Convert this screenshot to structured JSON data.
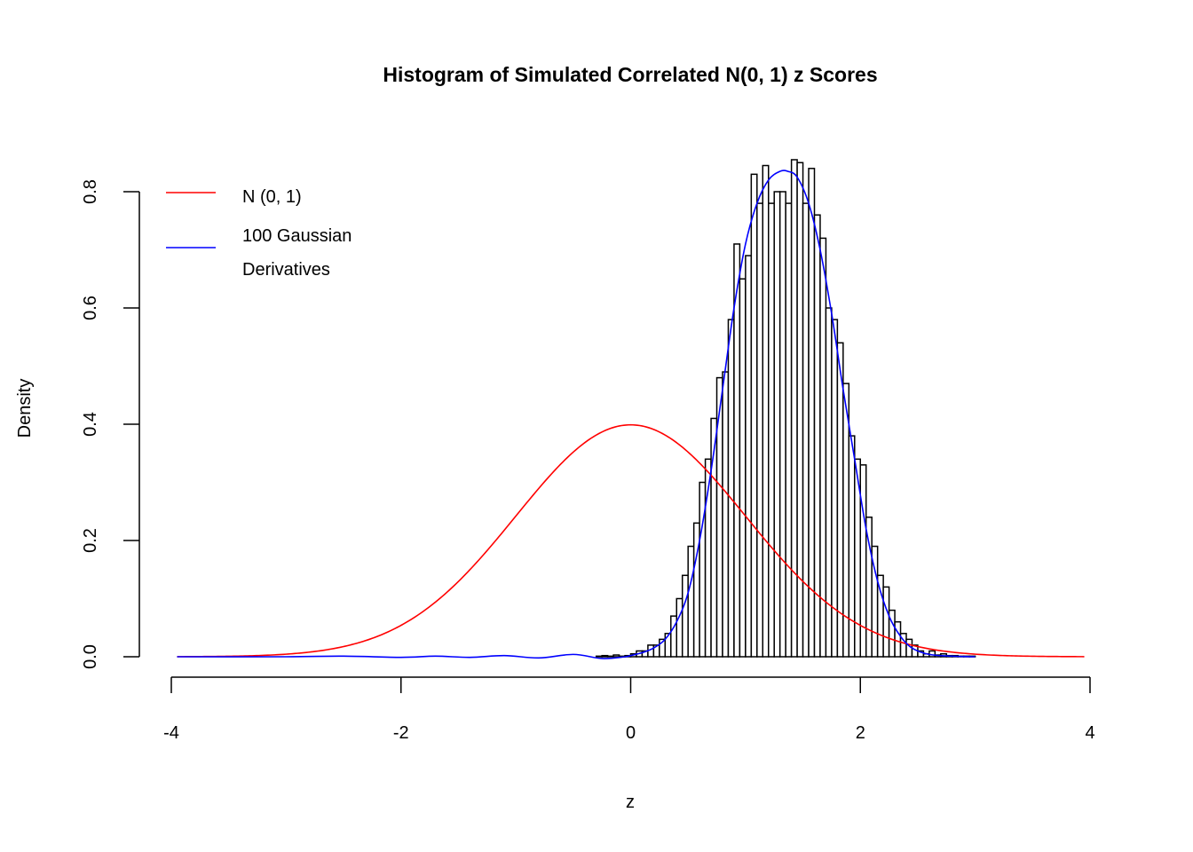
{
  "chart_data": {
    "type": "bar",
    "title": "Histogram of Simulated Correlated N(0, 1) z Scores",
    "xlabel": "z",
    "ylabel": "Density",
    "xlim": [
      -4,
      4
    ],
    "ylim": [
      0,
      0.8
    ],
    "xticks": [
      "-4",
      "-2",
      "0",
      "2",
      "4"
    ],
    "yticks": [
      "0.0",
      "0.2",
      "0.4",
      "0.6",
      "0.8"
    ],
    "grid": false,
    "legend_position": "top-left",
    "histogram": {
      "bin_width": 0.05,
      "bin_start": -0.3,
      "densities": [
        0.001,
        0.002,
        0.001,
        0.003,
        0.001,
        0.002,
        0.005,
        0.01,
        0.01,
        0.02,
        0.02,
        0.03,
        0.04,
        0.07,
        0.1,
        0.14,
        0.19,
        0.23,
        0.3,
        0.34,
        0.41,
        0.48,
        0.49,
        0.58,
        0.71,
        0.65,
        0.69,
        0.83,
        0.78,
        0.845,
        0.78,
        0.8,
        0.8,
        0.78,
        0.855,
        0.85,
        0.78,
        0.84,
        0.76,
        0.72,
        0.6,
        0.58,
        0.54,
        0.47,
        0.38,
        0.34,
        0.33,
        0.24,
        0.19,
        0.14,
        0.12,
        0.08,
        0.06,
        0.04,
        0.03,
        0.02,
        0.01,
        0.005,
        0.01,
        0.003,
        0.005,
        0.002,
        0.002,
        0.001,
        0.001,
        0.001
      ],
      "fill": "#ffffff",
      "stroke": "#000000"
    },
    "series": [
      {
        "name": "N (0, 1)",
        "color": "#ff0000",
        "type": "normal-density",
        "mean": 0,
        "sd": 1,
        "x_range": [
          -3.95,
          3.95
        ]
      },
      {
        "name": "100 Gaussian Derivatives",
        "color": "#0000ff",
        "type": "line",
        "x": [
          -3.95,
          -3,
          -2.5,
          -2,
          -1.7,
          -1.4,
          -1.1,
          -0.8,
          -0.5,
          -0.25,
          -0.05,
          0,
          0.1,
          0.2,
          0.3,
          0.4,
          0.5,
          0.6,
          0.7,
          0.8,
          0.9,
          1.0,
          1.1,
          1.2,
          1.3,
          1.37,
          1.45,
          1.55,
          1.65,
          1.75,
          1.85,
          1.95,
          2.05,
          2.15,
          2.25,
          2.35,
          2.45,
          2.6,
          2.8,
          3.0
        ],
        "y": [
          0,
          0,
          0.001,
          -0.001,
          0.001,
          -0.001,
          0.002,
          -0.002,
          0.004,
          -0.003,
          0,
          0.002,
          0.007,
          0.015,
          0.03,
          0.06,
          0.11,
          0.2,
          0.32,
          0.46,
          0.6,
          0.71,
          0.78,
          0.82,
          0.835,
          0.835,
          0.825,
          0.78,
          0.7,
          0.59,
          0.46,
          0.34,
          0.22,
          0.13,
          0.07,
          0.035,
          0.015,
          0.004,
          0.001,
          0
        ]
      }
    ],
    "legend": [
      "N (0, 1)",
      "100 Gaussian",
      "Derivatives"
    ]
  }
}
